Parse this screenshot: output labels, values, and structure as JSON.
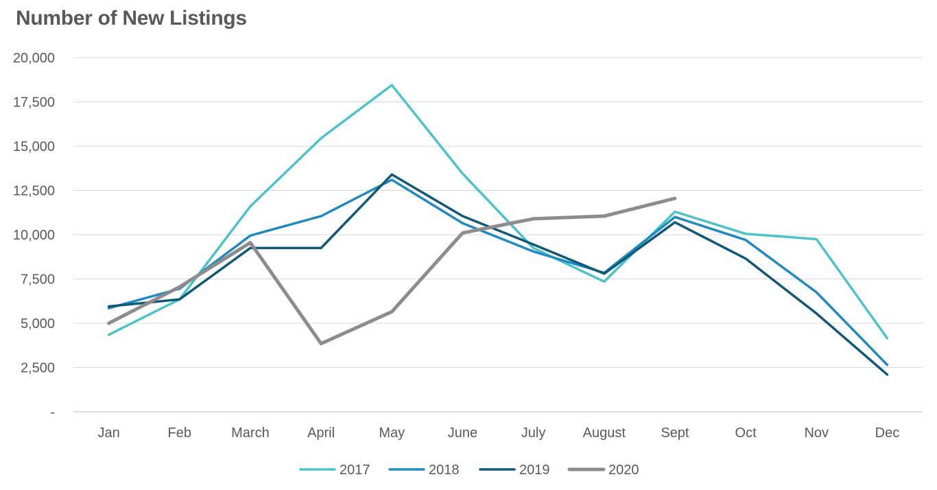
{
  "chart_data": {
    "type": "line",
    "title": "Number of New Listings",
    "xlabel": "",
    "ylabel": "",
    "ylim": [
      0,
      20000
    ],
    "y_ticks": [
      {
        "value": 0,
        "label": "-"
      },
      {
        "value": 2500,
        "label": "2,500"
      },
      {
        "value": 5000,
        "label": "5,000"
      },
      {
        "value": 7500,
        "label": "7,500"
      },
      {
        "value": 10000,
        "label": "10,000"
      },
      {
        "value": 12500,
        "label": "12,500"
      },
      {
        "value": 15000,
        "label": "15,000"
      },
      {
        "value": 17500,
        "label": "17,500"
      },
      {
        "value": 20000,
        "label": "20,000"
      }
    ],
    "categories": [
      "Jan",
      "Feb",
      "March",
      "April",
      "May",
      "June",
      "July",
      "August",
      "Sept",
      "Oct",
      "Nov",
      "Dec"
    ],
    "grid": true,
    "legend_position": "bottom",
    "series": [
      {
        "name": "2017",
        "color": "#4BC3C9",
        "values": [
          4350,
          6350,
          11600,
          15450,
          18450,
          13450,
          9250,
          7350,
          11300,
          10050,
          9750,
          4150
        ]
      },
      {
        "name": "2018",
        "color": "#1F8AC0",
        "values": [
          5850,
          6950,
          9950,
          11050,
          13100,
          10650,
          9050,
          7850,
          11000,
          9700,
          6750,
          2650
        ]
      },
      {
        "name": "2019",
        "color": "#0F5878",
        "values": [
          5950,
          6350,
          9250,
          9250,
          13400,
          11050,
          9450,
          7800,
          10700,
          8650,
          5550,
          2100
        ]
      },
      {
        "name": "2020",
        "color": "#8C8C8C",
        "values": [
          5000,
          7050,
          9550,
          3850,
          5650,
          10100,
          10900,
          11050,
          12050,
          null,
          null,
          null
        ]
      }
    ]
  }
}
